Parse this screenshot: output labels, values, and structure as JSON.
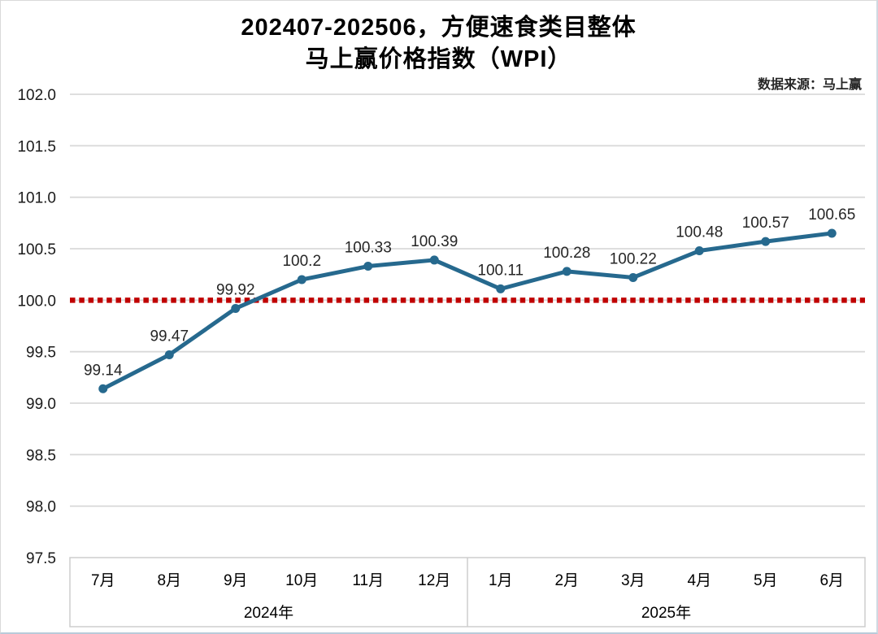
{
  "page": {
    "title_line1": "202407-202506，方便速食类目整体",
    "title_line2": "马上赢价格指数（WPI）",
    "source": "数据来源：马上赢"
  },
  "chart_data": {
    "type": "line",
    "title": "202407-202506，方便速食类目整体 马上赢价格指数（WPI）",
    "source": "数据来源：马上赢",
    "x": [
      "7月",
      "8月",
      "9月",
      "10月",
      "11月",
      "12月",
      "1月",
      "2月",
      "3月",
      "4月",
      "5月",
      "6月"
    ],
    "x_year_groups": [
      {
        "label": "2024年",
        "months": 6
      },
      {
        "label": "2025年",
        "months": 6
      }
    ],
    "series": [
      {
        "name": "马上赢价格指数（WPI）",
        "color": "#26698E",
        "values": [
          99.14,
          99.47,
          99.92,
          100.2,
          100.33,
          100.39,
          100.11,
          100.28,
          100.22,
          100.48,
          100.57,
          100.65
        ],
        "point_labels": [
          "99.14",
          "99.47",
          "99.92",
          "100.2",
          "100.33",
          "100.39",
          "100.11",
          "100.28",
          "100.22",
          "100.48",
          "100.57",
          "100.65"
        ]
      }
    ],
    "reference_line": {
      "value": 100.0,
      "color": "#C00000",
      "style": "dotted"
    },
    "ylim": [
      97.5,
      102.0
    ],
    "ytick_labels": [
      "102.0",
      "101.5",
      "101.0",
      "100.5",
      "100.0",
      "99.5",
      "99.0",
      "98.5",
      "98.0",
      "97.5"
    ],
    "grid": true,
    "legend": "none"
  },
  "colors": {
    "line": "#26698E",
    "reference": "#C00000",
    "grid": "#D9D9D9",
    "axis_box": "#CDCDCD",
    "tick_text": "#1a1a1a",
    "point_label_text": "#262626"
  }
}
